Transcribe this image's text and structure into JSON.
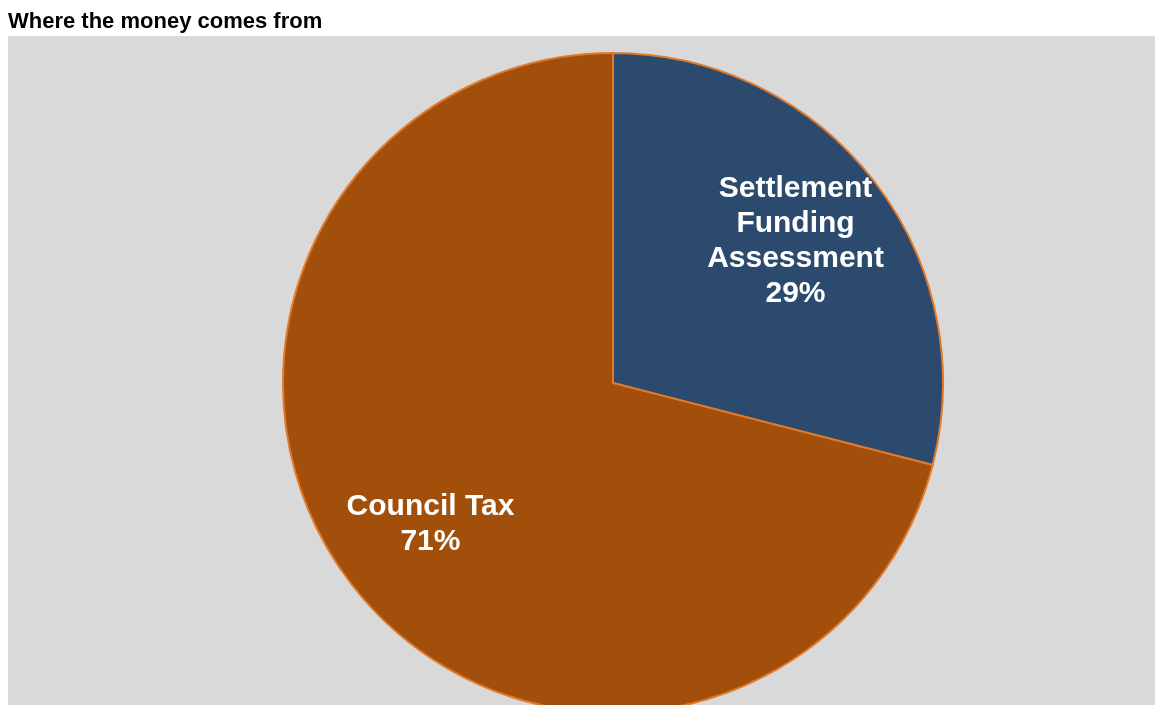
{
  "chart_data": {
    "type": "pie",
    "title": "Where the money comes from",
    "categories": [
      "Settlement Funding Assessment",
      "Council Tax"
    ],
    "values": [
      29,
      71
    ],
    "colors": [
      "#2c4a6e",
      "#a34f0c"
    ],
    "value_labels": [
      "29%",
      "71%"
    ]
  }
}
